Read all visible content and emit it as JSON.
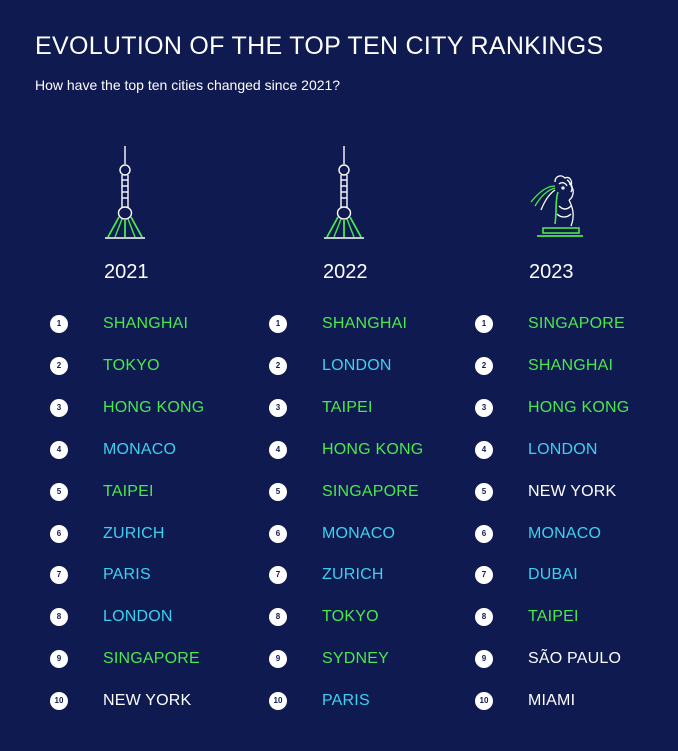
{
  "title": "EVOLUTION OF THE TOP TEN CITY RANKINGS",
  "subtitle": "How have the top ten cities changed since 2021?",
  "colors": {
    "background": "#0f1a50",
    "green": "#4be84b",
    "cyan": "#3fd0f0",
    "white": "#ffffff"
  },
  "columns": [
    {
      "year": "2021",
      "icon": "tower-icon",
      "cities": [
        {
          "rank": "1",
          "name": "SHANGHAI",
          "color": "green"
        },
        {
          "rank": "2",
          "name": "TOKYO",
          "color": "green"
        },
        {
          "rank": "3",
          "name": "HONG KONG",
          "color": "green"
        },
        {
          "rank": "4",
          "name": "MONACO",
          "color": "cyan"
        },
        {
          "rank": "5",
          "name": "TAIPEI",
          "color": "green"
        },
        {
          "rank": "6",
          "name": "ZURICH",
          "color": "cyan"
        },
        {
          "rank": "7",
          "name": "PARIS",
          "color": "cyan"
        },
        {
          "rank": "8",
          "name": "LONDON",
          "color": "cyan"
        },
        {
          "rank": "9",
          "name": "SINGAPORE",
          "color": "green"
        },
        {
          "rank": "10",
          "name": "NEW YORK",
          "color": "white"
        }
      ]
    },
    {
      "year": "2022",
      "icon": "tower-icon",
      "cities": [
        {
          "rank": "1",
          "name": "SHANGHAI",
          "color": "green"
        },
        {
          "rank": "2",
          "name": "LONDON",
          "color": "cyan"
        },
        {
          "rank": "3",
          "name": "TAIPEI",
          "color": "green"
        },
        {
          "rank": "4",
          "name": "HONG KONG",
          "color": "green"
        },
        {
          "rank": "5",
          "name": "SINGAPORE",
          "color": "green"
        },
        {
          "rank": "6",
          "name": "MONACO",
          "color": "cyan"
        },
        {
          "rank": "7",
          "name": "ZURICH",
          "color": "cyan"
        },
        {
          "rank": "8",
          "name": "TOKYO",
          "color": "green"
        },
        {
          "rank": "9",
          "name": "SYDNEY",
          "color": "green"
        },
        {
          "rank": "10",
          "name": "PARIS",
          "color": "cyan"
        }
      ]
    },
    {
      "year": "2023",
      "icon": "merlion-icon",
      "cities": [
        {
          "rank": "1",
          "name": "SINGAPORE",
          "color": "green"
        },
        {
          "rank": "2",
          "name": "SHANGHAI",
          "color": "green"
        },
        {
          "rank": "3",
          "name": "HONG KONG",
          "color": "green"
        },
        {
          "rank": "4",
          "name": "LONDON",
          "color": "cyan"
        },
        {
          "rank": "5",
          "name": "NEW YORK",
          "color": "white"
        },
        {
          "rank": "6",
          "name": "MONACO",
          "color": "cyan"
        },
        {
          "rank": "7",
          "name": "DUBAI",
          "color": "cyan"
        },
        {
          "rank": "8",
          "name": "TAIPEI",
          "color": "green"
        },
        {
          "rank": "9",
          "name": "SÃO PAULO",
          "color": "white"
        },
        {
          "rank": "10",
          "name": "MIAMI",
          "color": "white"
        }
      ]
    }
  ]
}
